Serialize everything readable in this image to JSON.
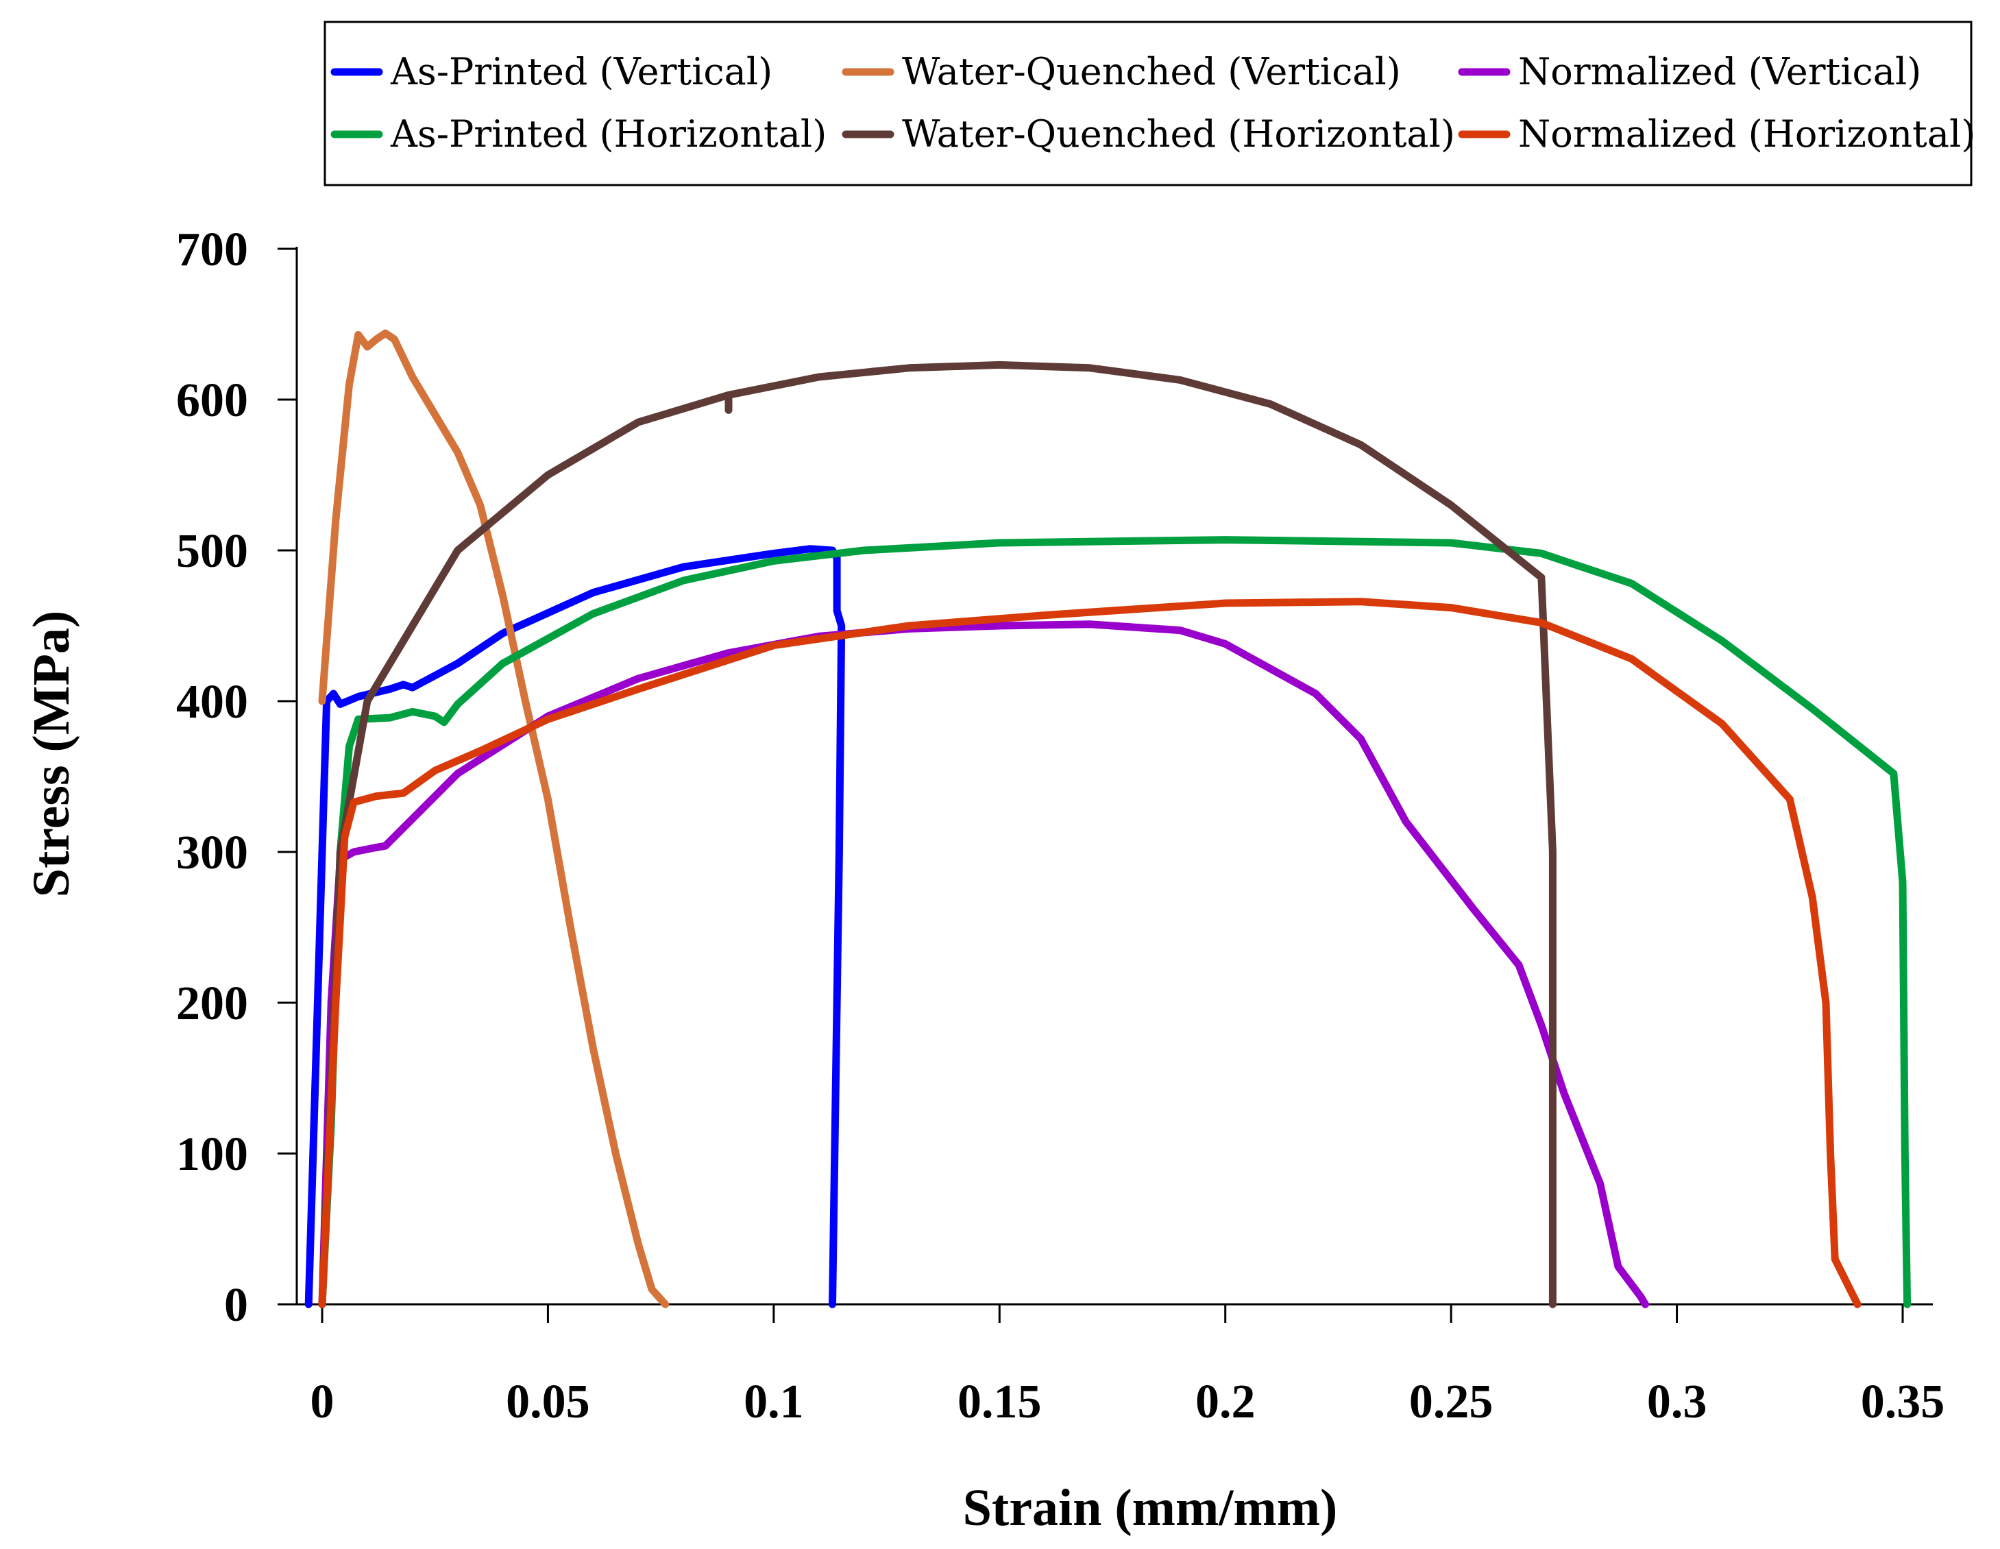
{
  "chart_data": {
    "type": "line",
    "title": "",
    "xlabel": "Strain (mm/mm)",
    "ylabel": "Stress (MPa)",
    "xlim": [
      0,
      0.35
    ],
    "ylim": [
      0,
      700
    ],
    "xticks": [
      "0",
      "0.05",
      "0.1",
      "0.15",
      "0.2",
      "0.25",
      "0.3",
      "0.35"
    ],
    "yticks": [
      "0",
      "100",
      "200",
      "300",
      "400",
      "500",
      "600",
      "700"
    ],
    "xtick_values": [
      0,
      0.05,
      0.1,
      0.15,
      0.2,
      0.25,
      0.3,
      0.35
    ],
    "ytick_values": [
      0,
      100,
      200,
      300,
      400,
      500,
      600,
      700
    ],
    "grid": false,
    "legend_position": "top",
    "series": [
      {
        "name": "As-Printed (Vertical)",
        "color": "#0000FF",
        "points": [
          [
            -0.003,
            0
          ],
          [
            0.0,
            300
          ],
          [
            0.001,
            400
          ],
          [
            0.0025,
            405
          ],
          [
            0.004,
            398
          ],
          [
            0.008,
            403
          ],
          [
            0.015,
            408
          ],
          [
            0.018,
            411
          ],
          [
            0.02,
            409
          ],
          [
            0.03,
            425
          ],
          [
            0.04,
            445
          ],
          [
            0.06,
            472
          ],
          [
            0.08,
            489
          ],
          [
            0.1,
            498
          ],
          [
            0.108,
            501
          ],
          [
            0.113,
            500
          ],
          [
            0.114,
            495
          ],
          [
            0.114,
            460
          ],
          [
            0.115,
            450
          ],
          [
            0.1145,
            300
          ],
          [
            0.1135,
            100
          ],
          [
            0.113,
            0
          ]
        ]
      },
      {
        "name": "Water-Quenched (Vertical)",
        "color": "#D4733A",
        "points": [
          [
            0.0,
            400
          ],
          [
            0.003,
            520
          ],
          [
            0.006,
            610
          ],
          [
            0.008,
            643
          ],
          [
            0.01,
            635
          ],
          [
            0.012,
            640
          ],
          [
            0.014,
            644
          ],
          [
            0.016,
            640
          ],
          [
            0.02,
            615
          ],
          [
            0.03,
            565
          ],
          [
            0.035,
            530
          ],
          [
            0.04,
            470
          ],
          [
            0.045,
            400
          ],
          [
            0.05,
            335
          ],
          [
            0.055,
            250
          ],
          [
            0.06,
            170
          ],
          [
            0.065,
            100
          ],
          [
            0.07,
            40
          ],
          [
            0.073,
            10
          ],
          [
            0.076,
            0
          ]
        ]
      },
      {
        "name": "Normalized (Vertical)",
        "color": "#9900CC",
        "points": [
          [
            0.0,
            0
          ],
          [
            0.002,
            200
          ],
          [
            0.004,
            295
          ],
          [
            0.007,
            300
          ],
          [
            0.012,
            303
          ],
          [
            0.014,
            304
          ],
          [
            0.02,
            322
          ],
          [
            0.03,
            352
          ],
          [
            0.05,
            390
          ],
          [
            0.07,
            415
          ],
          [
            0.09,
            432
          ],
          [
            0.11,
            443
          ],
          [
            0.13,
            448
          ],
          [
            0.15,
            450
          ],
          [
            0.17,
            451
          ],
          [
            0.19,
            447
          ],
          [
            0.2,
            438
          ],
          [
            0.22,
            405
          ],
          [
            0.23,
            375
          ],
          [
            0.24,
            320
          ],
          [
            0.255,
            262
          ],
          [
            0.265,
            225
          ],
          [
            0.27,
            185
          ],
          [
            0.275,
            140
          ],
          [
            0.283,
            80
          ],
          [
            0.287,
            25
          ],
          [
            0.292,
            5
          ],
          [
            0.293,
            0
          ]
        ]
      },
      {
        "name": "As-Printed (Horizontal)",
        "color": "#00A040",
        "points": [
          [
            0.0,
            0
          ],
          [
            0.002,
            120
          ],
          [
            0.004,
            300
          ],
          [
            0.006,
            370
          ],
          [
            0.008,
            388
          ],
          [
            0.015,
            389
          ],
          [
            0.02,
            393
          ],
          [
            0.025,
            390
          ],
          [
            0.027,
            386
          ],
          [
            0.03,
            398
          ],
          [
            0.04,
            425
          ],
          [
            0.06,
            458
          ],
          [
            0.08,
            480
          ],
          [
            0.1,
            493
          ],
          [
            0.12,
            500
          ],
          [
            0.15,
            505
          ],
          [
            0.2,
            507
          ],
          [
            0.25,
            505
          ],
          [
            0.27,
            498
          ],
          [
            0.29,
            478
          ],
          [
            0.31,
            440
          ],
          [
            0.33,
            395
          ],
          [
            0.348,
            352
          ],
          [
            0.35,
            280
          ],
          [
            0.3505,
            100
          ],
          [
            0.351,
            0
          ]
        ]
      },
      {
        "name": "Water-Quenched (Horizontal)",
        "color": "#5E3B36",
        "points": [
          [
            0.0,
            0
          ],
          [
            0.004,
            300
          ],
          [
            0.01,
            400
          ],
          [
            0.02,
            450
          ],
          [
            0.03,
            500
          ],
          [
            0.05,
            550
          ],
          [
            0.07,
            585
          ],
          [
            0.09,
            603
          ],
          [
            0.09,
            593
          ],
          [
            0.09,
            603
          ],
          [
            0.11,
            615
          ],
          [
            0.13,
            621
          ],
          [
            0.15,
            623
          ],
          [
            0.17,
            621
          ],
          [
            0.19,
            613
          ],
          [
            0.21,
            597
          ],
          [
            0.23,
            570
          ],
          [
            0.25,
            530
          ],
          [
            0.27,
            482
          ],
          [
            0.2725,
            300
          ],
          [
            0.2725,
            100
          ],
          [
            0.2725,
            0
          ]
        ]
      },
      {
        "name": "Normalized (Horizontal)",
        "color": "#D83A0A",
        "points": [
          [
            0.0,
            0
          ],
          [
            0.003,
            200
          ],
          [
            0.005,
            310
          ],
          [
            0.007,
            333
          ],
          [
            0.012,
            337
          ],
          [
            0.018,
            339
          ],
          [
            0.025,
            354
          ],
          [
            0.035,
            367
          ],
          [
            0.05,
            388
          ],
          [
            0.07,
            408
          ],
          [
            0.1,
            437
          ],
          [
            0.13,
            450
          ],
          [
            0.16,
            457
          ],
          [
            0.2,
            465
          ],
          [
            0.23,
            466
          ],
          [
            0.25,
            462
          ],
          [
            0.27,
            452
          ],
          [
            0.29,
            428
          ],
          [
            0.31,
            385
          ],
          [
            0.325,
            335
          ],
          [
            0.33,
            270
          ],
          [
            0.333,
            200
          ],
          [
            0.334,
            100
          ],
          [
            0.335,
            30
          ],
          [
            0.338,
            12
          ],
          [
            0.34,
            0
          ]
        ]
      }
    ]
  }
}
